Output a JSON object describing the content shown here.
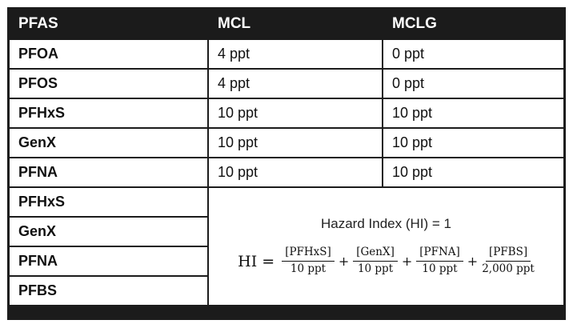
{
  "colors": {
    "header_bg": "#1b1b1b",
    "border": "#1c1c1c",
    "text": "#111111"
  },
  "table": {
    "headers": [
      "PFAS",
      "MCL",
      "MCLG"
    ],
    "rows": [
      {
        "pfas": "PFOA",
        "mcl": "4 ppt",
        "mclg": "0 ppt"
      },
      {
        "pfas": "PFOS",
        "mcl": "4 ppt",
        "mclg": "0 ppt"
      },
      {
        "pfas": "PFHxS",
        "mcl": "10 ppt",
        "mclg": "10 ppt"
      },
      {
        "pfas": "GenX",
        "mcl": "10 ppt",
        "mclg": "10 ppt"
      },
      {
        "pfas": "PFNA",
        "mcl": "10 ppt",
        "mclg": "10 ppt"
      }
    ],
    "hazard_group": {
      "rows": [
        "PFHxS",
        "GenX",
        "PFNA",
        "PFBS"
      ],
      "title": "Hazard Index (HI) = 1",
      "formula": {
        "lhs": "HI =",
        "plus": "+",
        "terms": [
          {
            "num": "[PFHxS]",
            "den": "10 ppt"
          },
          {
            "num": "[GenX]",
            "den": "10 ppt"
          },
          {
            "num": "[PFNA]",
            "den": "10 ppt"
          },
          {
            "num": "[PFBS]",
            "den": "2,000 ppt"
          }
        ]
      }
    }
  },
  "chart_data": {
    "type": "table",
    "columns": [
      "PFAS",
      "MCL",
      "MCLG"
    ],
    "rows": [
      [
        "PFOA",
        "4 ppt",
        "0 ppt"
      ],
      [
        "PFOS",
        "4 ppt",
        "0 ppt"
      ],
      [
        "PFHxS",
        "10 ppt",
        "10 ppt"
      ],
      [
        "GenX",
        "10 ppt",
        "10 ppt"
      ],
      [
        "PFNA",
        "10 ppt",
        "10 ppt"
      ]
    ],
    "merged_note": {
      "applies_to": [
        "PFHxS",
        "GenX",
        "PFNA",
        "PFBS"
      ],
      "text": "Hazard Index (HI) = 1",
      "formula": "HI = [PFHxS]/10 ppt + [GenX]/10 ppt + [PFNA]/10 ppt + [PFBS]/2,000 ppt"
    }
  }
}
